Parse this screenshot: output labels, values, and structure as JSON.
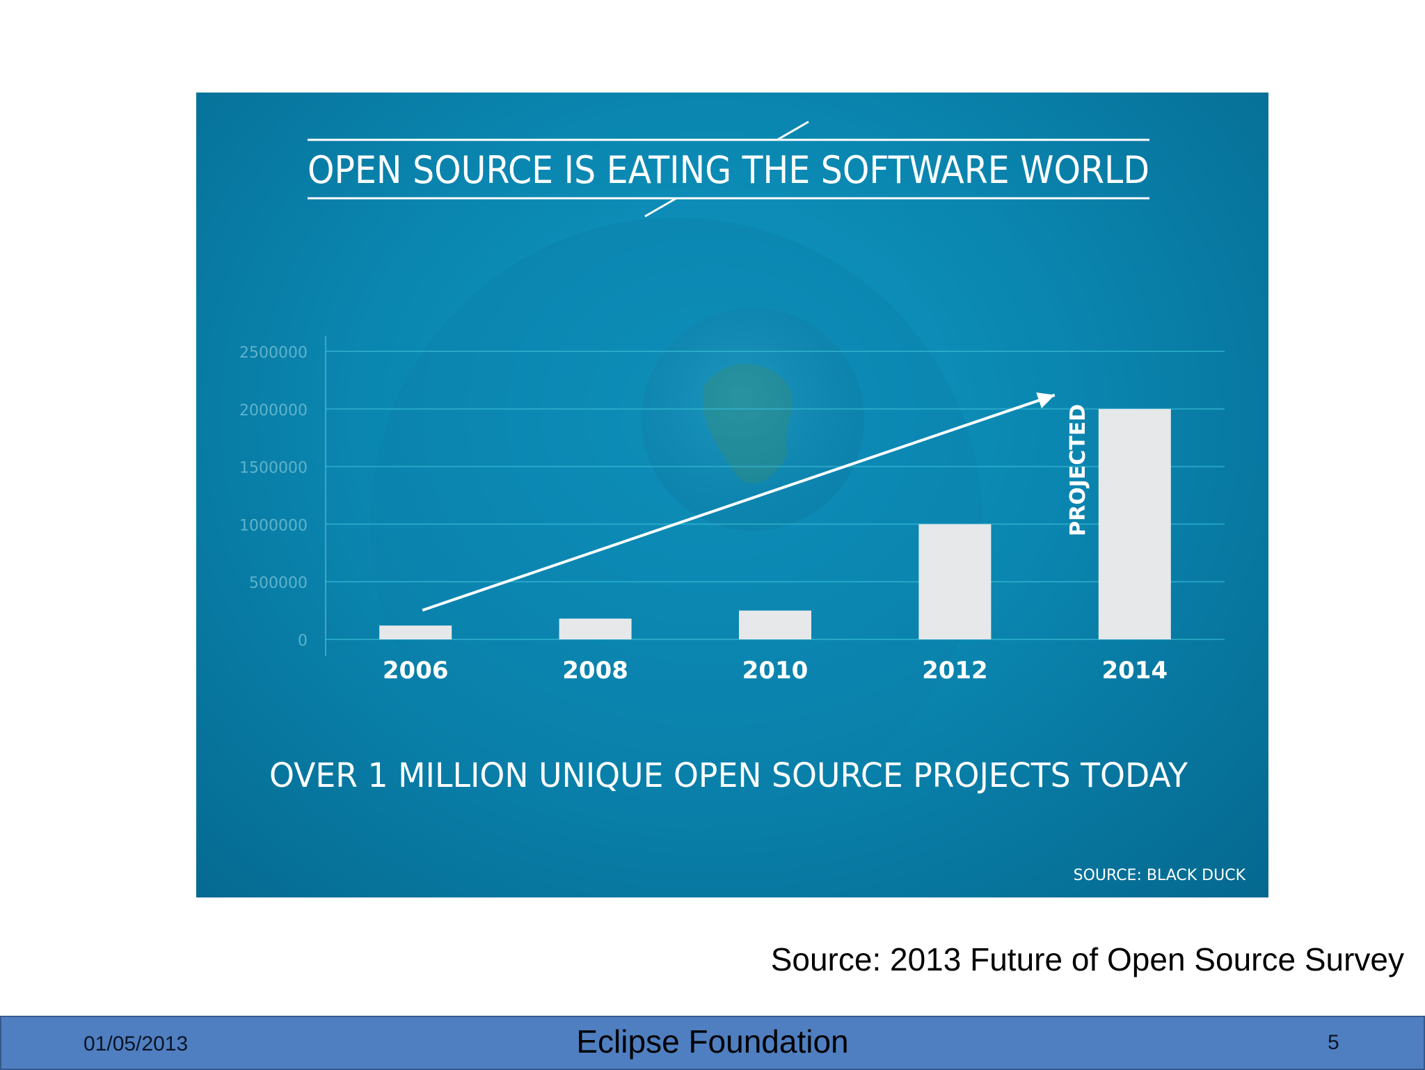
{
  "slide": {
    "source_caption": "Source: 2013 Future of Open Source Survey",
    "footer": {
      "date": "01/05/2013",
      "organization": "Eclipse Foundation",
      "page_number": "5"
    }
  },
  "infographic": {
    "headline": "OPEN SOURCE IS EATING THE SOFTWARE WORLD",
    "tagline": "OVER 1 MILLION UNIQUE OPEN SOURCE PROJECTS TODAY",
    "credit": "SOURCE: BLACK DUCK",
    "colors": {
      "background": "#0a86b0",
      "bars": "#e6e8ea",
      "text": "#ffffff",
      "gridlines": "#3fc4dd",
      "ticks": "#5fb3cb"
    }
  },
  "chart_data": {
    "type": "bar",
    "categories": [
      "2006",
      "2008",
      "2010",
      "2012",
      "2014"
    ],
    "values": [
      120000,
      180000,
      250000,
      1000000,
      2000000
    ],
    "ylim": [
      0,
      2500000
    ],
    "yticks": [
      "0",
      "500000",
      "1000000",
      "1500000",
      "2000000",
      "2500000"
    ],
    "grid": true,
    "annotations": [
      {
        "label": "PROJECTED",
        "category": "2014"
      },
      {
        "label": "trend-arrow",
        "from": "2006",
        "to": "2014"
      }
    ]
  }
}
